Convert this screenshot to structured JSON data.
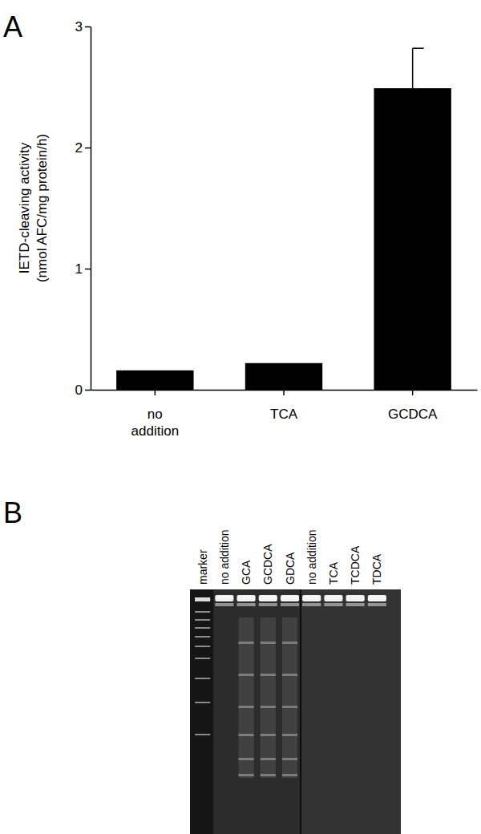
{
  "panel_labels": [
    "A",
    "B"
  ],
  "chart_data": {
    "type": "bar",
    "y_label": "IETD-cleaving activity (nmol AFC/mg protein/h)",
    "categories": [
      "no addition",
      "TCA",
      "GCDCA"
    ],
    "values": [
      0.16,
      0.22,
      2.49
    ],
    "errors": [
      null,
      null,
      0.33
    ],
    "color": "#000000",
    "ylim": [
      0,
      3
    ],
    "yticks": [
      0,
      1,
      2,
      3
    ],
    "grid": false
  },
  "gel": {
    "lanes": [
      "marker",
      "no addition",
      "GCA",
      "GCDCA",
      "GDCA",
      "no addition",
      "TCA",
      "TCDCA",
      "TDCA"
    ]
  }
}
